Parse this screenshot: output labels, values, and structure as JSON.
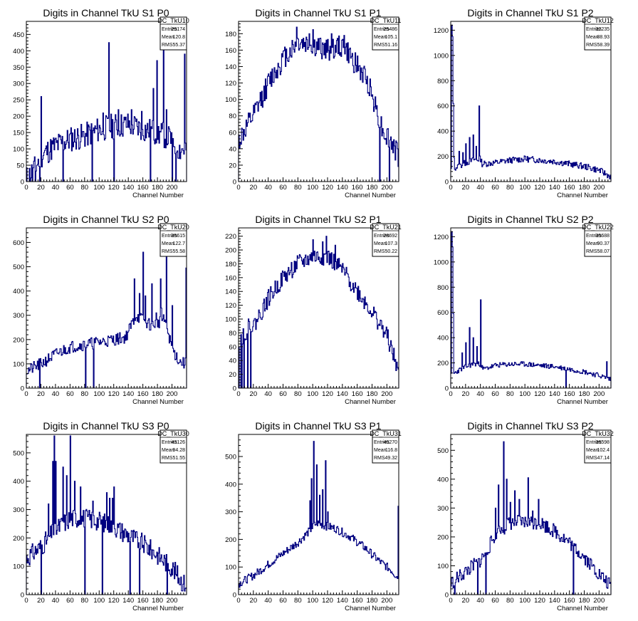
{
  "colors": {
    "histogram": "#000080",
    "axis": "#000000",
    "background": "#ffffff"
  },
  "chart_data": [
    {
      "type": "bar",
      "title": "Digits in Channel TkU S1 P0",
      "xlabel": "Channel Number",
      "ylabel": "",
      "xlim": [
        0,
        220
      ],
      "ylim": [
        0,
        490
      ],
      "xticks": [
        0,
        20,
        40,
        60,
        80,
        100,
        120,
        140,
        160,
        180,
        200
      ],
      "yticks": [
        0,
        50,
        100,
        150,
        200,
        250,
        300,
        350,
        400,
        450
      ],
      "stats": {
        "name": "DC_TkU10",
        "entries": "29174",
        "mean": "120.8",
        "rms": "55.37"
      },
      "anchors": [
        [
          0,
          10
        ],
        [
          10,
          35
        ],
        [
          20,
          80
        ],
        [
          40,
          110
        ],
        [
          60,
          130
        ],
        [
          80,
          140
        ],
        [
          100,
          160
        ],
        [
          120,
          170
        ],
        [
          140,
          175
        ],
        [
          160,
          160
        ],
        [
          180,
          150
        ],
        [
          200,
          130
        ],
        [
          210,
          100
        ],
        [
          218,
          100
        ]
      ],
      "noise": 40,
      "seed": 11,
      "dips": [
        1,
        2,
        5,
        8,
        12,
        18,
        50,
        90,
        120,
        170,
        200,
        205
      ],
      "peaks": [
        [
          113,
          425
        ],
        [
          188,
          415
        ],
        [
          217,
          390
        ],
        [
          179,
          370
        ],
        [
          174,
          285
        ],
        [
          20,
          260
        ],
        [
          192,
          220
        ],
        [
          144,
          220
        ],
        [
          158,
          215
        ],
        [
          105,
          210
        ],
        [
          126,
          220
        ]
      ]
    },
    {
      "type": "bar",
      "title": "Digits in Channel TkU S1 P1",
      "xlabel": "Channel Number",
      "ylabel": "",
      "xlim": [
        0,
        216
      ],
      "ylim": [
        0,
        195
      ],
      "xticks": [
        0,
        20,
        40,
        60,
        80,
        100,
        120,
        140,
        160,
        180,
        200
      ],
      "yticks": [
        0,
        20,
        40,
        60,
        80,
        100,
        120,
        140,
        160,
        180
      ],
      "stats": {
        "name": "DC_TkU11",
        "entries": "25486",
        "mean": "105.1",
        "rms": "51.16"
      },
      "anchors": [
        [
          0,
          50
        ],
        [
          20,
          80
        ],
        [
          40,
          120
        ],
        [
          60,
          150
        ],
        [
          80,
          170
        ],
        [
          100,
          165
        ],
        [
          120,
          160
        ],
        [
          140,
          165
        ],
        [
          160,
          140
        ],
        [
          175,
          120
        ],
        [
          185,
          90
        ],
        [
          195,
          60
        ],
        [
          205,
          50
        ],
        [
          215,
          30
        ]
      ],
      "noise": 14,
      "seed": 12,
      "dips": [
        190,
        203
      ],
      "peaks": [
        [
          78,
          188
        ],
        [
          100,
          185
        ],
        [
          95,
          180
        ],
        [
          125,
          180
        ],
        [
          142,
          178
        ]
      ]
    },
    {
      "type": "bar",
      "title": "Digits in Channel TkU S1 P2",
      "xlabel": "Channel Number",
      "ylabel": "",
      "xlim": [
        0,
        216
      ],
      "ylim": [
        0,
        1270
      ],
      "xticks": [
        0,
        20,
        40,
        60,
        80,
        100,
        120,
        140,
        160,
        180,
        200
      ],
      "yticks": [
        0,
        200,
        400,
        600,
        800,
        1000,
        1200
      ],
      "stats": {
        "name": "DC_TkU12",
        "entries": "32235",
        "mean": "88.93",
        "rms": "58.39"
      },
      "anchors": [
        [
          0,
          100
        ],
        [
          10,
          120
        ],
        [
          20,
          150
        ],
        [
          30,
          170
        ],
        [
          40,
          180
        ],
        [
          42,
          140
        ],
        [
          60,
          150
        ],
        [
          80,
          170
        ],
        [
          100,
          180
        ],
        [
          120,
          170
        ],
        [
          140,
          160
        ],
        [
          160,
          140
        ],
        [
          180,
          120
        ],
        [
          200,
          90
        ],
        [
          215,
          40
        ]
      ],
      "noise": 25,
      "seed": 13,
      "dips": [],
      "peaks": [
        [
          1,
          1240
        ],
        [
          2,
          1150
        ],
        [
          3,
          620
        ],
        [
          38,
          600
        ],
        [
          25,
          350
        ],
        [
          30,
          370
        ],
        [
          20,
          300
        ],
        [
          34,
          280
        ],
        [
          11,
          240
        ],
        [
          16,
          230
        ],
        [
          4,
          190
        ],
        [
          100,
          200
        ]
      ]
    },
    {
      "type": "bar",
      "title": "Digits in Channel TkU S2 P0",
      "xlabel": "Channel Number",
      "ylabel": "",
      "xlim": [
        0,
        220
      ],
      "ylim": [
        0,
        660
      ],
      "xticks": [
        0,
        20,
        40,
        60,
        80,
        100,
        120,
        140,
        160,
        180,
        200
      ],
      "yticks": [
        0,
        100,
        200,
        300,
        400,
        500,
        600
      ],
      "stats": {
        "name": "DC_TkU20",
        "entries": "35615",
        "mean": "122.7",
        "rms": "55.58"
      },
      "anchors": [
        [
          0,
          70
        ],
        [
          20,
          100
        ],
        [
          40,
          140
        ],
        [
          60,
          170
        ],
        [
          80,
          180
        ],
        [
          100,
          190
        ],
        [
          120,
          200
        ],
        [
          136,
          210
        ],
        [
          150,
          300
        ],
        [
          170,
          260
        ],
        [
          190,
          280
        ],
        [
          200,
          160
        ],
        [
          210,
          110
        ],
        [
          218,
          100
        ]
      ],
      "noise": 25,
      "seed": 21,
      "dips": [
        18,
        81,
        92
      ],
      "peaks": [
        [
          192,
          570
        ],
        [
          160,
          560
        ],
        [
          219,
          495
        ],
        [
          148,
          450
        ],
        [
          172,
          430
        ],
        [
          155,
          390
        ],
        [
          163,
          380
        ],
        [
          185,
          330
        ],
        [
          178,
          310
        ],
        [
          184,
          450
        ],
        [
          200,
          340
        ]
      ]
    },
    {
      "type": "bar",
      "title": "Digits in Channel TkU S2 P1",
      "xlabel": "Channel Number",
      "ylabel": "",
      "xlim": [
        0,
        216
      ],
      "ylim": [
        0,
        232
      ],
      "xticks": [
        0,
        20,
        40,
        60,
        80,
        100,
        120,
        140,
        160,
        180,
        200
      ],
      "yticks": [
        0,
        20,
        40,
        60,
        80,
        100,
        120,
        140,
        160,
        180,
        200,
        220
      ],
      "stats": {
        "name": "DC_TkU21",
        "entries": "28692",
        "mean": "107.3",
        "rms": "50.22"
      },
      "anchors": [
        [
          0,
          70
        ],
        [
          15,
          90
        ],
        [
          20,
          90
        ],
        [
          40,
          130
        ],
        [
          60,
          160
        ],
        [
          80,
          180
        ],
        [
          100,
          190
        ],
        [
          120,
          190
        ],
        [
          140,
          170
        ],
        [
          160,
          140
        ],
        [
          180,
          110
        ],
        [
          200,
          75
        ],
        [
          215,
          25
        ]
      ],
      "noise": 13,
      "seed": 22,
      "dips": [
        1,
        2,
        4,
        7,
        12,
        16
      ],
      "peaks": [
        [
          118,
          220
        ],
        [
          100,
          215
        ],
        [
          113,
          212
        ],
        [
          130,
          207
        ]
      ]
    },
    {
      "type": "bar",
      "title": "Digits in Channel TkU S2 P2",
      "xlabel": "Channel Number",
      "ylabel": "",
      "xlim": [
        0,
        216
      ],
      "ylim": [
        0,
        1270
      ],
      "xticks": [
        0,
        20,
        40,
        60,
        80,
        100,
        120,
        140,
        160,
        180,
        200
      ],
      "yticks": [
        0,
        200,
        400,
        600,
        800,
        1000,
        1200
      ],
      "stats": {
        "name": "DC_TkU22",
        "entries": "35688",
        "mean": "90.37",
        "rms": "58.07"
      },
      "anchors": [
        [
          0,
          100
        ],
        [
          10,
          140
        ],
        [
          20,
          170
        ],
        [
          30,
          190
        ],
        [
          40,
          190
        ],
        [
          43,
          150
        ],
        [
          60,
          180
        ],
        [
          80,
          190
        ],
        [
          100,
          190
        ],
        [
          120,
          180
        ],
        [
          140,
          170
        ],
        [
          160,
          150
        ],
        [
          180,
          130
        ],
        [
          200,
          100
        ],
        [
          215,
          70
        ]
      ],
      "noise": 20,
      "seed": 23,
      "dips": [
        155
      ],
      "peaks": [
        [
          1,
          1240
        ],
        [
          2,
          1120
        ],
        [
          3,
          590
        ],
        [
          40,
          700
        ],
        [
          25,
          480
        ],
        [
          30,
          400
        ],
        [
          35,
          330
        ],
        [
          20,
          360
        ],
        [
          15,
          280
        ],
        [
          210,
          210
        ]
      ]
    },
    {
      "type": "bar",
      "title": "Digits in Channel TkU S3 P0",
      "xlabel": "Channel Number",
      "ylabel": "",
      "xlim": [
        0,
        220
      ],
      "ylim": [
        0,
        565
      ],
      "xticks": [
        0,
        20,
        40,
        60,
        80,
        100,
        120,
        140,
        160,
        180,
        200
      ],
      "yticks": [
        0,
        100,
        200,
        300,
        400,
        500
      ],
      "stats": {
        "name": "DC_TkU30",
        "entries": "43126",
        "mean": "94.28",
        "rms": "51.55"
      },
      "anchors": [
        [
          0,
          130
        ],
        [
          20,
          170
        ],
        [
          40,
          230
        ],
        [
          60,
          270
        ],
        [
          80,
          270
        ],
        [
          100,
          260
        ],
        [
          120,
          240
        ],
        [
          140,
          210
        ],
        [
          160,
          180
        ],
        [
          180,
          140
        ],
        [
          200,
          95
        ],
        [
          215,
          40
        ]
      ],
      "noise": 35,
      "seed": 31,
      "dips": [
        20,
        80,
        104,
        142,
        155,
        193
      ],
      "peaks": [
        [
          38,
          560
        ],
        [
          60,
          560
        ],
        [
          40,
          500
        ],
        [
          36,
          470
        ],
        [
          50,
          450
        ],
        [
          55,
          420
        ],
        [
          66,
          400
        ],
        [
          74,
          380
        ],
        [
          110,
          360
        ],
        [
          120,
          380
        ],
        [
          118,
          340
        ],
        [
          91,
          330
        ],
        [
          30,
          320
        ],
        [
          40,
          470
        ],
        [
          114,
          340
        ]
      ]
    },
    {
      "type": "bar",
      "title": "Digits in Channel TkU S3 P1",
      "xlabel": "Channel Number",
      "ylabel": "",
      "xlim": [
        0,
        216
      ],
      "ylim": [
        0,
        580
      ],
      "xticks": [
        0,
        20,
        40,
        60,
        80,
        100,
        120,
        140,
        160,
        180,
        200
      ],
      "yticks": [
        0,
        100,
        200,
        300,
        400,
        500
      ],
      "stats": {
        "name": "DC_TkU31",
        "entries": "40270",
        "mean": "116.8",
        "rms": "49.32"
      },
      "anchors": [
        [
          0,
          40
        ],
        [
          20,
          70
        ],
        [
          40,
          110
        ],
        [
          60,
          150
        ],
        [
          80,
          190
        ],
        [
          95,
          230
        ],
        [
          105,
          260
        ],
        [
          115,
          250
        ],
        [
          130,
          240
        ],
        [
          150,
          210
        ],
        [
          170,
          170
        ],
        [
          190,
          120
        ],
        [
          205,
          90
        ],
        [
          215,
          60
        ]
      ],
      "noise": 15,
      "seed": 32,
      "dips": [],
      "peaks": [
        [
          101,
          555
        ],
        [
          117,
          485
        ],
        [
          105,
          470
        ],
        [
          98,
          420
        ],
        [
          96,
          340
        ],
        [
          109,
          360
        ],
        [
          113,
          380
        ],
        [
          120,
          300
        ],
        [
          215,
          320
        ]
      ]
    },
    {
      "type": "bar",
      "title": "Digits in Channel TkU S3 P2",
      "xlabel": "Channel Number",
      "ylabel": "",
      "xlim": [
        0,
        216
      ],
      "ylim": [
        0,
        555
      ],
      "xticks": [
        0,
        20,
        40,
        60,
        80,
        100,
        120,
        140,
        160,
        180,
        200
      ],
      "yticks": [
        0,
        100,
        200,
        300,
        400,
        500
      ],
      "stats": {
        "name": "DC_TkU32",
        "entries": "36598",
        "mean": "102.4",
        "rms": "47.14"
      },
      "anchors": [
        [
          0,
          40
        ],
        [
          20,
          80
        ],
        [
          40,
          120
        ],
        [
          50,
          160
        ],
        [
          60,
          210
        ],
        [
          80,
          250
        ],
        [
          100,
          250
        ],
        [
          120,
          250
        ],
        [
          140,
          220
        ],
        [
          160,
          180
        ],
        [
          180,
          130
        ],
        [
          200,
          70
        ],
        [
          215,
          30
        ]
      ],
      "noise": 25,
      "seed": 33,
      "dips": [
        5,
        36,
        47,
        165
      ],
      "peaks": [
        [
          71,
          530
        ],
        [
          104,
          405
        ],
        [
          75,
          400
        ],
        [
          64,
          380
        ],
        [
          92,
          330
        ],
        [
          86,
          360
        ],
        [
          80,
          320
        ],
        [
          60,
          300
        ],
        [
          110,
          290
        ],
        [
          118,
          330
        ]
      ]
    }
  ]
}
